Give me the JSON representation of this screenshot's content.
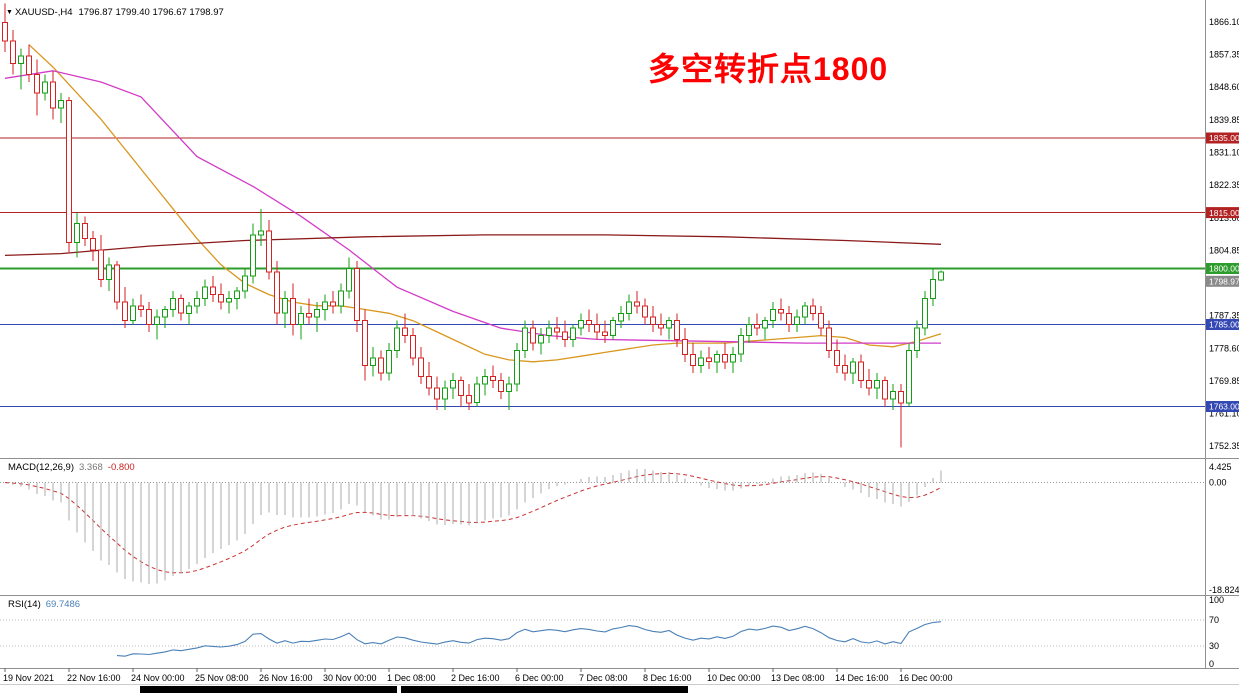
{
  "window": {
    "title": "XAUUSD-,H4",
    "ohlc": "1796.87 1799.40 1796.67 1798.97",
    "dropdown_icon": "▼"
  },
  "annotation": {
    "text": "多空转折点1800",
    "color": "#ff0000"
  },
  "chart_data": {
    "type": "candlestick",
    "symbol": "XAUUSD-",
    "timeframe": "H4",
    "ohlc_display": {
      "open": "1796.87",
      "high": "1799.40",
      "low": "1796.67",
      "close": "1798.97"
    },
    "bar_spacing": 8,
    "colors": {
      "up": "#12a012",
      "down": "#d42222"
    },
    "price_axis": {
      "min": 1750.0,
      "max": 1868.5,
      "tick_labels": [
        "1866.10",
        "1857.35",
        "1848.60",
        "1839.85",
        "1831.10",
        "1822.35",
        "1813.60",
        "1804.85",
        "1796.10",
        "1787.35",
        "1778.60",
        "1769.85",
        "1761.10",
        "1752.35"
      ]
    },
    "time_labels": [
      "19 Nov 2021",
      "22 Nov 16:00",
      "24 Nov 00:00",
      "25 Nov 08:00",
      "26 Nov 16:00",
      "30 Nov 00:00",
      "1 Dec 08:00",
      "2 Dec 16:00",
      "6 Dec 00:00",
      "7 Dec 08:00",
      "8 Dec 16:00",
      "10 Dec 00:00",
      "13 Dec 08:00",
      "14 Dec 16:00",
      "16 Dec 00:00"
    ],
    "levels": [
      {
        "value": 1835.0,
        "label": "1835.00",
        "color": "#b22222",
        "width": 1.2
      },
      {
        "value": 1815.0,
        "label": "1815.00",
        "color": "#b22222",
        "width": 1.2
      },
      {
        "value": 1800.0,
        "label": "1800.00",
        "color": "#2c9c2c",
        "width": 2.2
      },
      {
        "value": 1785.0,
        "label": "1785.00",
        "color": "#3448b4",
        "width": 1.4
      },
      {
        "value": 1763.0,
        "label": "1763.00",
        "color": "#3448b4",
        "width": 1.4
      }
    ],
    "current_price": {
      "value": 1798.97,
      "label": "1798.97",
      "color": "#8a8a8a"
    },
    "moving_averages": [
      {
        "name": "ma-orange",
        "color": "#d9971e",
        "points": [
          [
            3,
            1860
          ],
          [
            6,
            1854
          ],
          [
            9,
            1847
          ],
          [
            12,
            1840
          ],
          [
            15,
            1832
          ],
          [
            18,
            1824
          ],
          [
            21,
            1816
          ],
          [
            24,
            1808
          ],
          [
            27,
            1801
          ],
          [
            30,
            1796
          ],
          [
            33,
            1793
          ],
          [
            36,
            1791
          ],
          [
            39,
            1790
          ],
          [
            42,
            1790
          ],
          [
            45,
            1789
          ],
          [
            48,
            1788
          ],
          [
            51,
            1786
          ],
          [
            54,
            1783
          ],
          [
            57,
            1780
          ],
          [
            60,
            1777
          ],
          [
            63,
            1775.5
          ],
          [
            66,
            1775
          ],
          [
            69,
            1775.5
          ],
          [
            72,
            1776.5
          ],
          [
            75,
            1777.5
          ],
          [
            78,
            1778.5
          ],
          [
            81,
            1779.5
          ],
          [
            84,
            1780
          ],
          [
            87,
            1780
          ],
          [
            90,
            1780
          ],
          [
            93,
            1780.5
          ],
          [
            96,
            1781
          ],
          [
            99,
            1781.5
          ],
          [
            102,
            1782
          ],
          [
            105,
            1781.5
          ],
          [
            108,
            1779.5
          ],
          [
            111,
            1779
          ],
          [
            114,
            1780.5
          ],
          [
            117,
            1782.5
          ]
        ]
      },
      {
        "name": "ma-magenta",
        "color": "#d23cc8",
        "points": [
          [
            0,
            1851
          ],
          [
            6,
            1853
          ],
          [
            12,
            1850
          ],
          [
            17,
            1846
          ],
          [
            24,
            1830
          ],
          [
            31,
            1822
          ],
          [
            37,
            1814
          ],
          [
            43,
            1805
          ],
          [
            49,
            1795
          ],
          [
            56,
            1788.5
          ],
          [
            62,
            1784
          ],
          [
            68,
            1782
          ],
          [
            74,
            1781
          ],
          [
            87,
            1780.5
          ],
          [
            100,
            1780
          ],
          [
            117,
            1780
          ]
        ]
      },
      {
        "name": "ma-darkred",
        "color": "#8b1a1a",
        "points": [
          [
            0,
            1803.5
          ],
          [
            7,
            1804
          ],
          [
            18,
            1806
          ],
          [
            30,
            1807.5
          ],
          [
            45,
            1808.5
          ],
          [
            60,
            1809
          ],
          [
            75,
            1809
          ],
          [
            90,
            1808.5
          ],
          [
            105,
            1807.5
          ],
          [
            117,
            1806.5
          ]
        ]
      }
    ],
    "candles": [
      [
        1866,
        1871,
        1858,
        1861
      ],
      [
        1861,
        1864,
        1852,
        1855
      ],
      [
        1855,
        1859,
        1848,
        1857
      ],
      [
        1857,
        1860,
        1850,
        1852
      ],
      [
        1852,
        1856,
        1841,
        1847
      ],
      [
        1847,
        1852,
        1845,
        1850
      ],
      [
        1850,
        1853,
        1840,
        1843
      ],
      [
        1843,
        1847,
        1839,
        1845
      ],
      [
        1845,
        1846,
        1804,
        1807
      ],
      [
        1807,
        1815,
        1803,
        1812
      ],
      [
        1812,
        1814,
        1806,
        1808
      ],
      [
        1808,
        1810,
        1802,
        1805
      ],
      [
        1805,
        1809,
        1795,
        1797
      ],
      [
        1797,
        1803,
        1794,
        1801
      ],
      [
        1801,
        1802,
        1789,
        1791
      ],
      [
        1791,
        1795,
        1784,
        1786
      ],
      [
        1786,
        1792,
        1785,
        1790
      ],
      [
        1790,
        1793,
        1787,
        1789
      ],
      [
        1789,
        1791,
        1783,
        1785
      ],
      [
        1785,
        1789,
        1781,
        1787
      ],
      [
        1787,
        1790,
        1784,
        1789
      ],
      [
        1789,
        1794,
        1787,
        1792
      ],
      [
        1792,
        1793,
        1786,
        1788
      ],
      [
        1788,
        1791,
        1785,
        1790
      ],
      [
        1790,
        1794,
        1788,
        1792
      ],
      [
        1792,
        1797,
        1790,
        1795
      ],
      [
        1795,
        1798,
        1791,
        1793
      ],
      [
        1793,
        1796,
        1789,
        1791
      ],
      [
        1791,
        1794,
        1788,
        1792
      ],
      [
        1792,
        1795,
        1789,
        1794
      ],
      [
        1794,
        1800,
        1792,
        1798
      ],
      [
        1798,
        1812,
        1796,
        1809
      ],
      [
        1809,
        1816,
        1806,
        1810
      ],
      [
        1810,
        1813,
        1797,
        1799
      ],
      [
        1799,
        1802,
        1785,
        1788
      ],
      [
        1788,
        1794,
        1784,
        1792
      ],
      [
        1792,
        1796,
        1782,
        1785
      ],
      [
        1785,
        1790,
        1781,
        1788
      ],
      [
        1788,
        1792,
        1785,
        1787
      ],
      [
        1787,
        1791,
        1783,
        1789
      ],
      [
        1789,
        1793,
        1786,
        1791
      ],
      [
        1791,
        1794,
        1788,
        1790
      ],
      [
        1790,
        1796,
        1788,
        1794
      ],
      [
        1794,
        1803,
        1792,
        1800
      ],
      [
        1800,
        1802,
        1783,
        1786
      ],
      [
        1786,
        1789,
        1770,
        1774
      ],
      [
        1774,
        1779,
        1771,
        1776
      ],
      [
        1776,
        1778,
        1770,
        1772
      ],
      [
        1772,
        1780,
        1770,
        1778
      ],
      [
        1778,
        1786,
        1776,
        1784
      ],
      [
        1784,
        1788,
        1780,
        1782
      ],
      [
        1782,
        1784,
        1774,
        1776
      ],
      [
        1776,
        1779,
        1769,
        1771
      ],
      [
        1771,
        1775,
        1766,
        1768
      ],
      [
        1768,
        1771,
        1762,
        1765
      ],
      [
        1765,
        1770,
        1762,
        1768
      ],
      [
        1768,
        1772,
        1765,
        1770
      ],
      [
        1770,
        1771,
        1763,
        1766
      ],
      [
        1766,
        1769,
        1762,
        1764
      ],
      [
        1764,
        1771,
        1763,
        1769
      ],
      [
        1769,
        1773,
        1766,
        1771
      ],
      [
        1771,
        1774,
        1768,
        1770
      ],
      [
        1770,
        1772,
        1765,
        1767
      ],
      [
        1767,
        1771,
        1762,
        1769
      ],
      [
        1769,
        1780,
        1767,
        1778
      ],
      [
        1778,
        1786,
        1776,
        1784
      ],
      [
        1784,
        1786,
        1778,
        1780
      ],
      [
        1780,
        1784,
        1777,
        1782
      ],
      [
        1782,
        1786,
        1780,
        1784
      ],
      [
        1784,
        1787,
        1781,
        1783
      ],
      [
        1783,
        1786,
        1779,
        1781
      ],
      [
        1781,
        1785,
        1779,
        1784
      ],
      [
        1784,
        1788,
        1782,
        1786
      ],
      [
        1786,
        1789,
        1783,
        1785
      ],
      [
        1785,
        1788,
        1781,
        1783
      ],
      [
        1783,
        1786,
        1780,
        1782
      ],
      [
        1782,
        1787,
        1781,
        1786
      ],
      [
        1786,
        1790,
        1784,
        1788
      ],
      [
        1788,
        1793,
        1786,
        1791
      ],
      [
        1791,
        1794,
        1788,
        1790
      ],
      [
        1790,
        1792,
        1785,
        1787
      ],
      [
        1787,
        1790,
        1783,
        1785
      ],
      [
        1785,
        1788,
        1782,
        1784
      ],
      [
        1784,
        1787,
        1781,
        1786
      ],
      [
        1786,
        1788,
        1779,
        1781
      ],
      [
        1781,
        1784,
        1775,
        1777
      ],
      [
        1777,
        1780,
        1772,
        1774
      ],
      [
        1774,
        1778,
        1772,
        1776
      ],
      [
        1776,
        1779,
        1773,
        1775
      ],
      [
        1775,
        1778,
        1772,
        1777
      ],
      [
        1777,
        1780,
        1773,
        1775
      ],
      [
        1775,
        1779,
        1772,
        1777
      ],
      [
        1777,
        1784,
        1775,
        1782
      ],
      [
        1782,
        1787,
        1780,
        1785
      ],
      [
        1785,
        1788,
        1782,
        1784
      ],
      [
        1784,
        1787,
        1781,
        1786
      ],
      [
        1786,
        1791,
        1784,
        1789
      ],
      [
        1789,
        1792,
        1786,
        1788
      ],
      [
        1788,
        1790,
        1783,
        1785
      ],
      [
        1785,
        1789,
        1783,
        1787
      ],
      [
        1787,
        1791,
        1785,
        1790
      ],
      [
        1790,
        1792,
        1786,
        1788
      ],
      [
        1788,
        1790,
        1782,
        1784
      ],
      [
        1784,
        1786,
        1776,
        1778
      ],
      [
        1778,
        1781,
        1772,
        1774
      ],
      [
        1774,
        1777,
        1770,
        1772
      ],
      [
        1772,
        1776,
        1769,
        1775
      ],
      [
        1775,
        1777,
        1768,
        1770
      ],
      [
        1770,
        1773,
        1766,
        1768
      ],
      [
        1768,
        1772,
        1765,
        1770
      ],
      [
        1770,
        1771,
        1763,
        1765
      ],
      [
        1765,
        1769,
        1762,
        1767
      ],
      [
        1767,
        1769,
        1752,
        1764
      ],
      [
        1764,
        1780,
        1763,
        1778
      ],
      [
        1778,
        1786,
        1776,
        1784
      ],
      [
        1784,
        1794,
        1782,
        1792
      ],
      [
        1792,
        1800,
        1790,
        1797
      ],
      [
        1796.9,
        1799.4,
        1796.7,
        1799
      ]
    ],
    "indicators": {
      "macd": {
        "label": "MACD(12,26,9)",
        "value": "3.368",
        "signal_value": "-0.800",
        "params": [
          12,
          26,
          9
        ],
        "axis": [
          "4.425",
          "0.00",
          "-18.824"
        ],
        "histogram_color": "#ababab",
        "signal_color": "#cc3333"
      },
      "rsi": {
        "label": "RSI(14)",
        "value": "69.7486",
        "period": 14,
        "axis": [
          "100",
          "70",
          "30",
          "0"
        ],
        "levels": [
          70,
          30
        ],
        "color": "#4a80b8"
      }
    }
  }
}
